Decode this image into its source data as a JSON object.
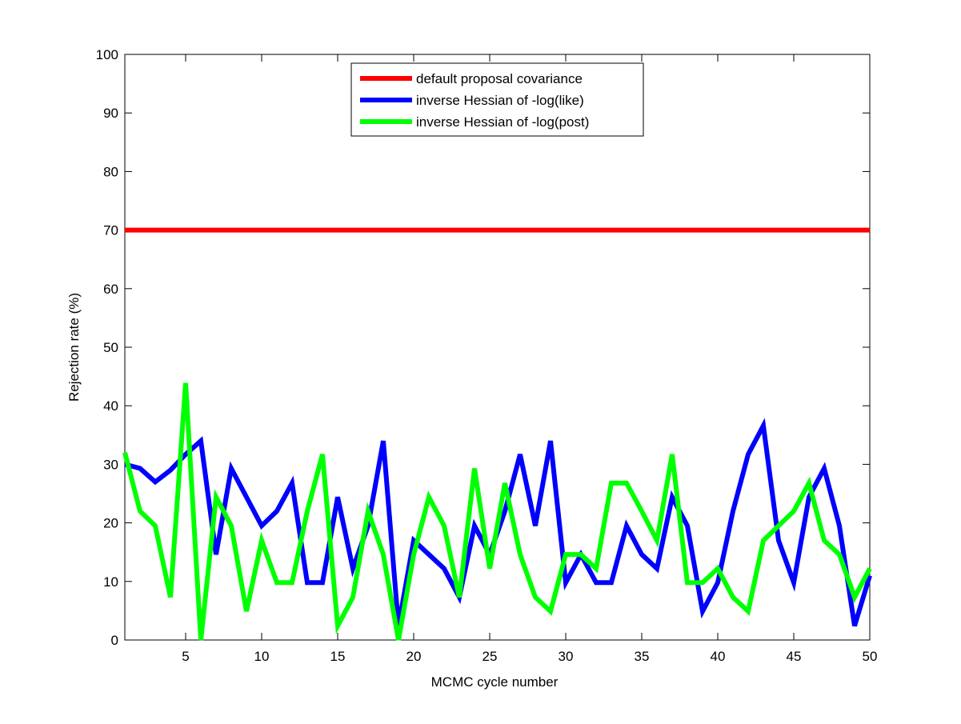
{
  "chart_data": {
    "type": "line",
    "title": "",
    "xlabel": "MCMC cycle number",
    "ylabel": "Rejection rate (%)",
    "xlim": [
      1,
      50
    ],
    "ylim": [
      0,
      100
    ],
    "xticks": [
      5,
      10,
      15,
      20,
      25,
      30,
      35,
      40,
      45,
      50
    ],
    "yticks": [
      0,
      10,
      20,
      30,
      40,
      50,
      60,
      70,
      80,
      90,
      100
    ],
    "grid": false,
    "legend_position": "top-center",
    "x": [
      1,
      2,
      3,
      4,
      5,
      6,
      7,
      8,
      9,
      10,
      11,
      12,
      13,
      14,
      15,
      16,
      17,
      18,
      19,
      20,
      21,
      22,
      23,
      24,
      25,
      26,
      27,
      28,
      29,
      30,
      31,
      32,
      33,
      34,
      35,
      36,
      37,
      38,
      39,
      40,
      41,
      42,
      43,
      44,
      45,
      46,
      47,
      48,
      49,
      50
    ],
    "series": [
      {
        "name": "default proposal covariance",
        "color": "#ff0000",
        "values": [
          70,
          70,
          70,
          70,
          70,
          70,
          70,
          70,
          70,
          70,
          70,
          70,
          70,
          70,
          70,
          70,
          70,
          70,
          70,
          70,
          70,
          70,
          70,
          70,
          70,
          70,
          70,
          70,
          70,
          70,
          70,
          70,
          70,
          70,
          70,
          70,
          70,
          70,
          70,
          70,
          70,
          70,
          70,
          70,
          70,
          70,
          70,
          70,
          70,
          70
        ]
      },
      {
        "name": "inverse Hessian of -log(like)",
        "color": "#0000ff",
        "values": [
          30,
          29.3,
          27,
          29,
          31.7,
          34,
          14.6,
          29.3,
          24.4,
          19.5,
          22,
          26.8,
          9.8,
          9.8,
          24.4,
          12.2,
          19.5,
          34,
          2.4,
          17,
          14.6,
          12.2,
          7.3,
          19.5,
          14.6,
          22,
          31.7,
          19.5,
          34,
          9.8,
          14.6,
          9.8,
          9.8,
          19.5,
          14.6,
          12.2,
          24.4,
          19.5,
          4.9,
          9.8,
          22,
          31.7,
          36.6,
          17,
          9.8,
          24.4,
          29.3,
          19.5,
          2.4,
          11
        ]
      },
      {
        "name": "inverse Hessian of -log(post)",
        "color": "#00ff00",
        "values": [
          32,
          22,
          19.5,
          7.3,
          43.9,
          0,
          24.4,
          19.5,
          4.9,
          17,
          9.8,
          9.8,
          22,
          31.7,
          2.4,
          7.3,
          22,
          14.6,
          0,
          14.6,
          24.4,
          19.5,
          7.3,
          29.3,
          12.2,
          26.8,
          14.6,
          7.3,
          4.9,
          14.6,
          14.6,
          12.2,
          26.8,
          26.8,
          22,
          17,
          31.7,
          9.8,
          9.8,
          12.2,
          7.3,
          4.9,
          17,
          19.5,
          22,
          26.8,
          17,
          14.6,
          7.3,
          12.2
        ]
      }
    ]
  }
}
